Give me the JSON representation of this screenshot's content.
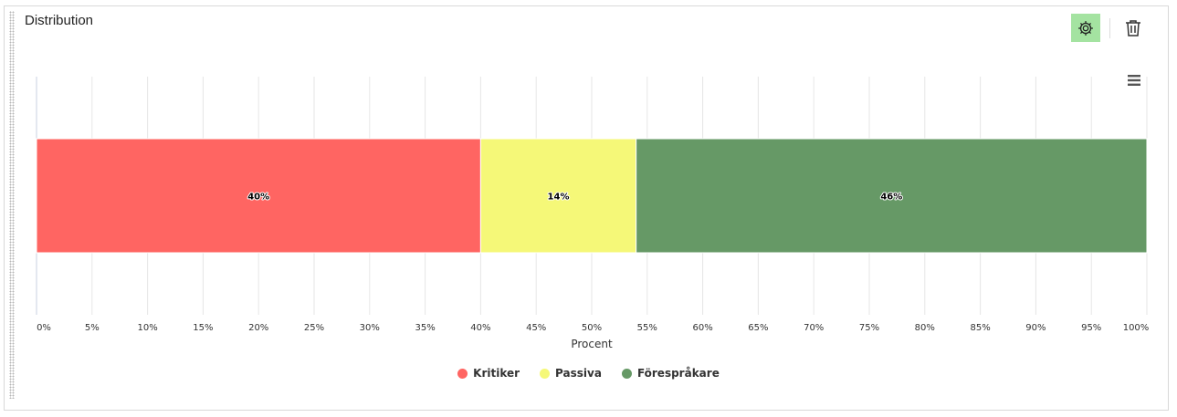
{
  "widget": {
    "title": "Distribution",
    "settings_icon": "gear-icon",
    "delete_icon": "trash-icon",
    "menu_icon": "hamburger-menu-icon"
  },
  "colors": {
    "settings_bg": "#a4e3a1"
  },
  "chart_data": {
    "type": "bar",
    "orientation": "horizontal",
    "stacked": true,
    "xlabel": "Procent",
    "xlim": [
      0,
      100
    ],
    "x_ticks": [
      "0%",
      "5%",
      "10%",
      "15%",
      "20%",
      "25%",
      "30%",
      "35%",
      "40%",
      "45%",
      "50%",
      "55%",
      "60%",
      "65%",
      "70%",
      "75%",
      "80%",
      "85%",
      "90%",
      "95%",
      "100%"
    ],
    "grid": true,
    "legend_position": "bottom",
    "series": [
      {
        "name": "Kritiker",
        "value": 40,
        "label": "40%",
        "color": "#ff6562"
      },
      {
        "name": "Passiva",
        "value": 14,
        "label": "14%",
        "color": "#f5f878"
      },
      {
        "name": "Förespråkare",
        "value": 46,
        "label": "46%",
        "color": "#669966"
      }
    ]
  }
}
